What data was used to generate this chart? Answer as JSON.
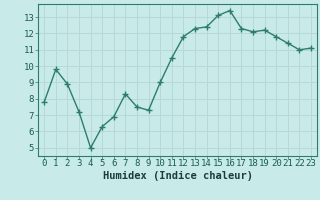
{
  "x": [
    0,
    1,
    2,
    3,
    4,
    5,
    6,
    7,
    8,
    9,
    10,
    11,
    12,
    13,
    14,
    15,
    16,
    17,
    18,
    19,
    20,
    21,
    22,
    23
  ],
  "y": [
    7.8,
    9.8,
    8.9,
    7.2,
    5.0,
    6.3,
    6.9,
    8.3,
    7.5,
    7.3,
    9.0,
    10.5,
    11.8,
    12.3,
    12.4,
    13.1,
    13.4,
    12.3,
    12.1,
    12.2,
    11.8,
    11.4,
    11.0,
    11.1
  ],
  "line_color": "#2d7d6e",
  "marker": "+",
  "marker_size": 4,
  "line_width": 1.0,
  "bg_color": "#c8eae8",
  "grid_color": "#b8d8d5",
  "border_color": "#2d7d6e",
  "xlabel": "Humidex (Indice chaleur)",
  "xlabel_fontsize": 7.5,
  "yticks": [
    5,
    6,
    7,
    8,
    9,
    10,
    11,
    12,
    13
  ],
  "ylim": [
    4.5,
    13.8
  ],
  "xlim": [
    -0.5,
    23.5
  ],
  "tick_fontsize": 6.5,
  "tick_color": "#1a5c52",
  "label_color": "#1a3d38"
}
